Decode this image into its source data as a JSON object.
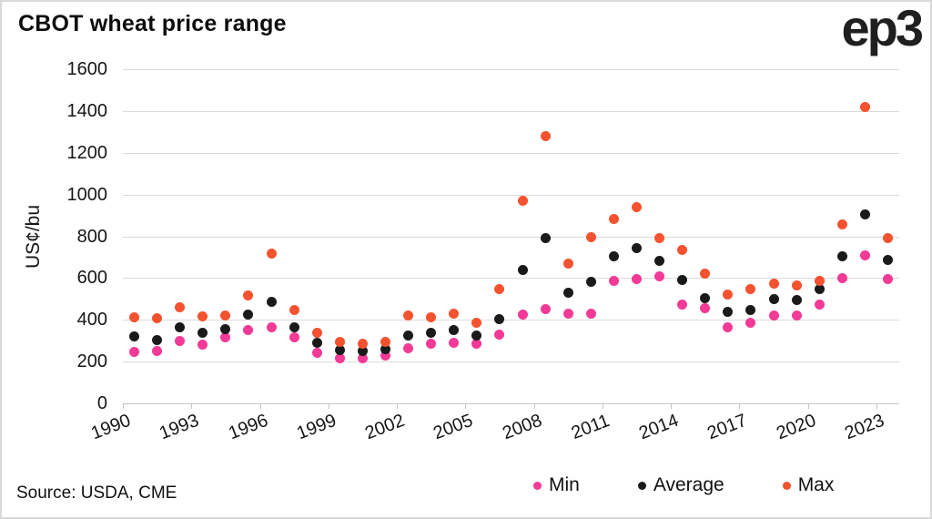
{
  "header": {
    "title": "CBOT wheat price range",
    "logo": "ep3"
  },
  "footer": {
    "source": "Source: USDA, CME"
  },
  "legend": [
    {
      "label": "Min",
      "color": "#f23a96"
    },
    {
      "label": "Average",
      "color": "#1a1a1a"
    },
    {
      "label": "Max",
      "color": "#f5522f"
    }
  ],
  "colors": {
    "min": "#f23a96",
    "average": "#1a1a1a",
    "max": "#f5522f",
    "gridline": "#dadada",
    "axis": "#c4c4c4",
    "text": "#111111"
  },
  "chart_data": {
    "type": "scatter",
    "title": "CBOT wheat price range",
    "xlabel": "",
    "ylabel": "US¢/bu",
    "ylim": [
      0,
      1600
    ],
    "y_ticks": [
      0,
      200,
      400,
      600,
      800,
      1000,
      1200,
      1400,
      1600
    ],
    "x_tick_years": [
      1990,
      1993,
      1996,
      1999,
      2002,
      2005,
      2008,
      2011,
      2014,
      2017,
      2020,
      2023
    ],
    "grid": true,
    "legend_position": "bottom-right",
    "years": [
      1990,
      1991,
      1992,
      1993,
      1994,
      1995,
      1996,
      1997,
      1998,
      1999,
      2000,
      2001,
      2002,
      2003,
      2004,
      2005,
      2006,
      2007,
      2008,
      2009,
      2010,
      2011,
      2012,
      2013,
      2014,
      2015,
      2016,
      2017,
      2018,
      2019,
      2020,
      2021,
      2022,
      2023
    ],
    "series": [
      {
        "name": "Min",
        "color": "#f23a96",
        "values": [
          245,
          250,
          300,
          280,
          315,
          350,
          365,
          315,
          240,
          215,
          215,
          230,
          265,
          285,
          290,
          285,
          330,
          425,
          450,
          430,
          430,
          585,
          595,
          610,
          475,
          455,
          365,
          385,
          420,
          420,
          475,
          600,
          710,
          595
        ]
      },
      {
        "name": "Average",
        "color": "#1a1a1a",
        "values": [
          320,
          305,
          365,
          338,
          355,
          425,
          485,
          365,
          290,
          255,
          250,
          260,
          325,
          340,
          350,
          325,
          405,
          640,
          790,
          530,
          580,
          705,
          745,
          683,
          590,
          505,
          440,
          445,
          500,
          495,
          545,
          705,
          905,
          685
        ]
      },
      {
        "name": "Max",
        "color": "#f5522f",
        "values": [
          410,
          408,
          458,
          415,
          420,
          515,
          715,
          445,
          340,
          295,
          285,
          295,
          420,
          410,
          430,
          385,
          545,
          970,
          1280,
          668,
          795,
          885,
          938,
          790,
          735,
          620,
          520,
          545,
          575,
          565,
          585,
          855,
          1420,
          790
        ]
      }
    ]
  }
}
